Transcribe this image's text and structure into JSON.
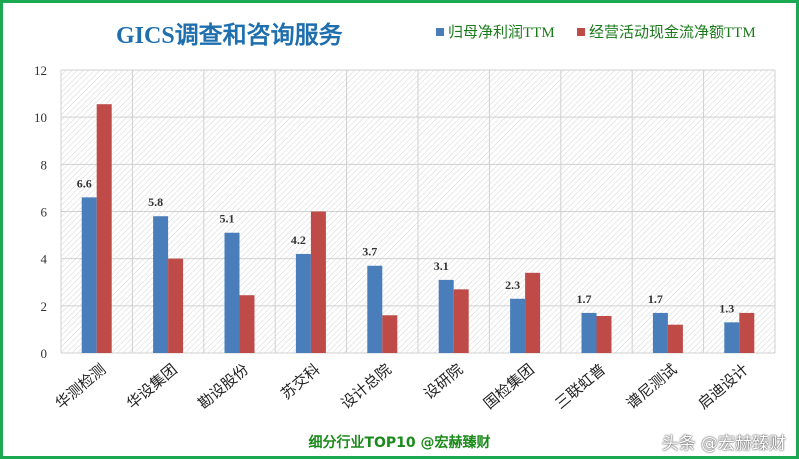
{
  "chart_data": {
    "type": "bar",
    "title": "GICS调查和咨询服务",
    "categories": [
      "华测检测",
      "华设集团",
      "勘设股份",
      "苏交科",
      "设计总院",
      "设研院",
      "国检集团",
      "三联虹普",
      "谱尼测试",
      "启迪设计"
    ],
    "series": [
      {
        "name": "归母净利润TTM",
        "color": "#4a7ebb",
        "values": [
          6.6,
          5.8,
          5.1,
          4.2,
          3.7,
          3.1,
          2.3,
          1.7,
          1.7,
          1.3
        ],
        "labels": [
          "6.6",
          "5.8",
          "5.1",
          "4.2",
          "3.7",
          "3.1",
          "2.3",
          "1.7",
          "1.7",
          "1.3"
        ]
      },
      {
        "name": "经营活动现金流净额TTM",
        "color": "#be4b48",
        "values": [
          10.55,
          4.0,
          2.45,
          6.0,
          1.6,
          2.7,
          3.4,
          1.57,
          1.2,
          1.7
        ]
      }
    ],
    "ylim": [
      0,
      12
    ],
    "yticks": [
      "0",
      "2",
      "4",
      "6",
      "8",
      "10",
      "12"
    ],
    "grid": true,
    "legend": "top-right"
  },
  "footer": "细分行业TOP10 @宏赫臻财",
  "watermark": "头条 @宏赫臻财"
}
